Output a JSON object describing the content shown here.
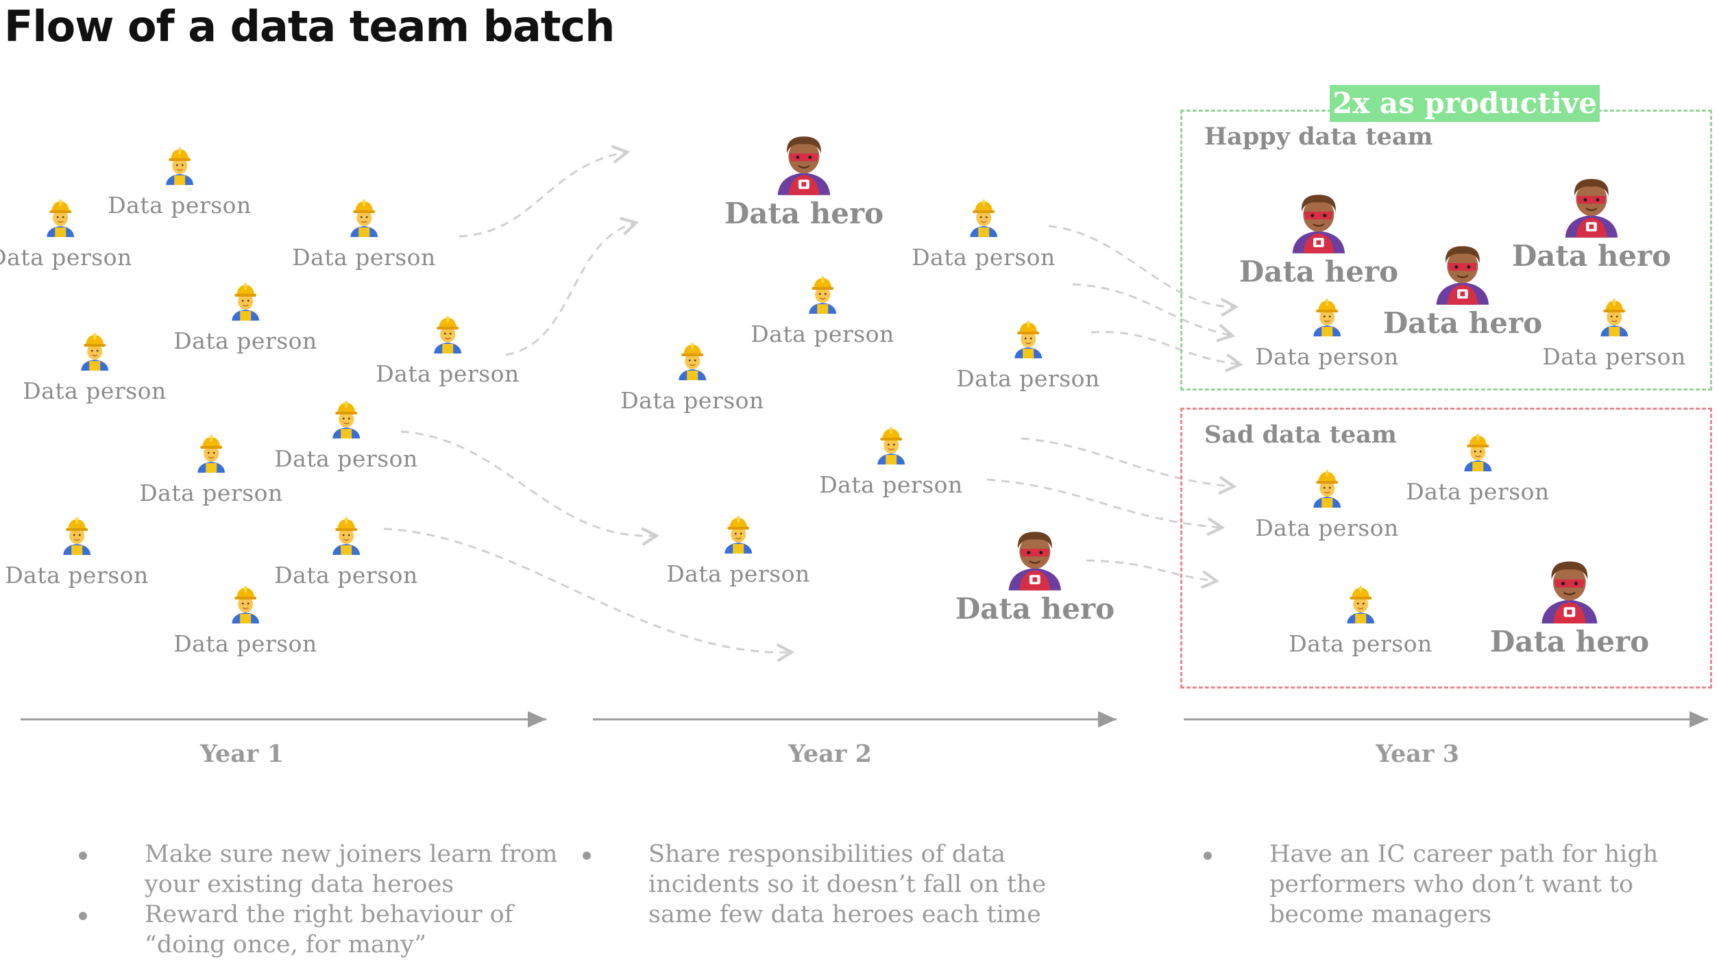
{
  "title": "Flow of a data team batch",
  "labels": {
    "person": "Data person",
    "hero": "Data hero",
    "happy_team": "Happy data team",
    "sad_team": "Sad data team",
    "productive_badge": "2x as productive"
  },
  "icons": {
    "person": "construction-worker-icon",
    "hero": "superhero-icon"
  },
  "colors": {
    "happy_border": "#97d397",
    "sad_border": "#e8868e",
    "badge_bg": "#86e393",
    "text": "#8c8c8c",
    "arrows": "#d0d0d0",
    "axis": "#9a9a9a"
  },
  "timeline": [
    {
      "year": "Year 1",
      "tips": [
        "Make sure new joiners learn from your existing data heroes",
        "Reward the right behaviour of “doing once, for many”"
      ]
    },
    {
      "year": "Year 2",
      "tips": [
        "Share responsibilities of data incidents so it doesn’t fall on the same few data heroes each time"
      ]
    },
    {
      "year": "Year 3",
      "tips": [
        "Have an IC career path for high performers who don’t want to become managers"
      ]
    }
  ]
}
